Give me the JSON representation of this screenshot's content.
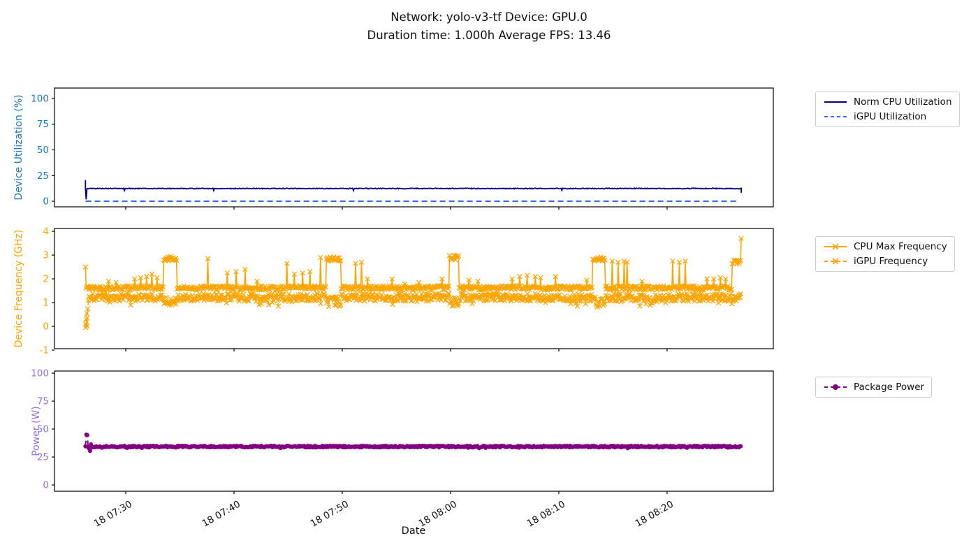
{
  "title": {
    "line1": "Network: yolo-v3-tf Device: GPU.0",
    "line2": "Duration time: 1.000h Average FPS: 13.46"
  },
  "x_axis": {
    "label": "Date",
    "tick_minutes": [
      0,
      10,
      20,
      30,
      40,
      50
    ],
    "tick_labels": [
      "18 07:30",
      "18 07:40",
      "18 07:50",
      "18 08:00",
      "18 08:10",
      "18 08:20"
    ],
    "xlim_minutes": [
      -6.58,
      59.81
    ],
    "data_start": "18 07:26",
    "data_end": "18 08:27"
  },
  "chart_data": [
    {
      "type": "line",
      "ylabel": "Device Utilization (%)",
      "ylabel_color": "#1f77b4",
      "ytick_labels": [
        "0",
        "25",
        "50",
        "75",
        "100"
      ],
      "yticks": [
        0,
        25,
        50,
        75,
        100
      ],
      "ylim": [
        -5.44,
        110.2
      ],
      "legend_position": "outside-right",
      "series": [
        {
          "name": "iGPU Utilization",
          "color": "#4169e1",
          "line": "dashed",
          "line_width": 2.2,
          "marker": "none",
          "seed": 11,
          "n": 300,
          "t_range": [
            -3.7,
            56.6
          ],
          "baseline": 0,
          "noise": 0,
          "spikes": [],
          "clusters": []
        },
        {
          "name": "Norm CPU Utilization",
          "color": "#000080",
          "line": "solid",
          "line_width": 1.8,
          "marker": "none",
          "seed": 5,
          "n": 860,
          "t_range": [
            -3.72,
            56.85
          ],
          "baseline": 12.4,
          "noise": 0.38,
          "start_points": [
            [
              -3.72,
              20.5
            ]
          ],
          "end_points": [
            [
              56.85,
              8.2
            ]
          ],
          "spikes": [
            [
              -3.66,
              1.8
            ],
            [
              -0.1,
              10.4
            ],
            [
              8.1,
              10.5
            ],
            [
              21.0,
              10.4
            ],
            [
              40.3,
              10.6
            ]
          ],
          "clusters": []
        }
      ]
    },
    {
      "type": "line",
      "ylabel": "Device Frequency (GHz)",
      "ylabel_color": "#ffa500",
      "ytick_labels": [
        "-1",
        "0",
        "1",
        "2",
        "3",
        "4"
      ],
      "yticks": [
        -1,
        0,
        1,
        2,
        3,
        4
      ],
      "ylim": [
        -0.94,
        4.12
      ],
      "legend_position": "outside-right",
      "series": [
        {
          "name": "iGPU Frequency",
          "color": "#ffa500",
          "line": "dashed",
          "line_width": 1.4,
          "marker": "x",
          "marker_size": 3.2,
          "marker_every": 1,
          "seed": 23,
          "n": 880,
          "t_range": [
            -3.45,
            56.8
          ],
          "baseline": 1.22,
          "noise": 0.16,
          "dip_prob": 0.05,
          "dip_amt": 0.3,
          "start_points": [
            [
              -3.72,
              0.1
            ],
            [
              -3.69,
              -0.05
            ],
            [
              -3.66,
              0.3
            ],
            [
              -3.63,
              0.05
            ],
            [
              -3.6,
              0.55
            ],
            [
              -3.57,
              0.0
            ],
            [
              -3.54,
              0.35
            ],
            [
              -3.5,
              0.75
            ]
          ],
          "spikes": [],
          "clusters": [
            [
              3.5,
              4.7,
              0.82,
              1.25
            ],
            [
              12.0,
              12.6,
              0.9,
              1.3
            ],
            [
              18.5,
              19.9,
              0.82,
              1.25
            ],
            [
              29.9,
              30.8,
              0.85,
              1.25
            ],
            [
              43.1,
              44.3,
              0.8,
              1.25
            ],
            [
              48.5,
              49.3,
              0.95,
              1.35
            ]
          ]
        },
        {
          "name": "CPU Max Frequency",
          "color": "#ffa500",
          "line": "solid",
          "line_width": 1.6,
          "marker": "x",
          "marker_size": 3.2,
          "marker_every": 1,
          "seed": 42,
          "n": 880,
          "t_range": [
            -3.72,
            56.85
          ],
          "baseline": 1.62,
          "noise": 0.09,
          "spikes": [
            [
              -3.7,
              2.5
            ],
            [
              -1.6,
              1.9
            ],
            [
              -0.9,
              1.85
            ],
            [
              0.8,
              2.0
            ],
            [
              1.4,
              2.05
            ],
            [
              1.9,
              2.1
            ],
            [
              2.4,
              2.2
            ],
            [
              2.9,
              2.05
            ],
            [
              7.6,
              2.85
            ],
            [
              9.4,
              2.25
            ],
            [
              10.2,
              2.3
            ],
            [
              11.0,
              2.4
            ],
            [
              12.1,
              1.9
            ],
            [
              14.9,
              2.65
            ],
            [
              15.6,
              2.2
            ],
            [
              16.3,
              2.25
            ],
            [
              17.0,
              2.3
            ],
            [
              18.0,
              2.9
            ],
            [
              21.2,
              2.65
            ],
            [
              21.8,
              2.7
            ],
            [
              22.3,
              2.0
            ],
            [
              24.6,
              2.0
            ],
            [
              25.8,
              1.78
            ],
            [
              27.1,
              1.85
            ],
            [
              29.2,
              2.0
            ],
            [
              31.7,
              1.95
            ],
            [
              32.5,
              1.9
            ],
            [
              35.7,
              2.0
            ],
            [
              36.4,
              2.1
            ],
            [
              37.1,
              2.15
            ],
            [
              37.8,
              2.1
            ],
            [
              38.3,
              2.05
            ],
            [
              39.7,
              2.1
            ],
            [
              42.6,
              1.95
            ],
            [
              44.9,
              2.75
            ],
            [
              45.5,
              2.7
            ],
            [
              46.0,
              2.75
            ],
            [
              46.3,
              2.7
            ],
            [
              47.7,
              1.9
            ],
            [
              50.5,
              2.75
            ],
            [
              51.1,
              2.7
            ],
            [
              51.7,
              2.75
            ],
            [
              53.7,
              2.0
            ],
            [
              54.3,
              2.0
            ],
            [
              54.9,
              2.05
            ],
            [
              55.4,
              2.0
            ],
            [
              56.85,
              3.7
            ]
          ],
          "clusters": [
            [
              3.5,
              4.7,
              2.75,
              2.95
            ],
            [
              18.5,
              19.9,
              2.75,
              2.95
            ],
            [
              29.9,
              30.8,
              2.8,
              3.0
            ],
            [
              43.1,
              44.3,
              2.75,
              2.95
            ],
            [
              56.0,
              56.8,
              2.6,
              2.8
            ]
          ]
        }
      ]
    },
    {
      "type": "line",
      "ylabel": "Power (W)",
      "ylabel_color": "#9370db",
      "ytick_labels": [
        "0",
        "25",
        "50",
        "75",
        "100"
      ],
      "yticks": [
        0,
        25,
        50,
        75,
        100
      ],
      "ylim": [
        -5.6,
        101.9
      ],
      "legend_position": "outside-right",
      "series": [
        {
          "name": "Package Power",
          "color": "#800080",
          "line": "dashed",
          "line_width": 2,
          "marker": "circle",
          "marker_size": 3,
          "marker_every": 1,
          "seed": 77,
          "n": 720,
          "t_range": [
            -3.72,
            56.8
          ],
          "baseline": 34.3,
          "noise": 0.75,
          "dip_prob": 0.03,
          "dip_amt": 1.2,
          "spikes": [
            [
              -3.65,
              45.0
            ],
            [
              -3.58,
              44.6
            ]
          ],
          "clusters": [
            [
              -3.72,
              -3.2,
              30.0,
              36.5
            ]
          ]
        }
      ]
    }
  ]
}
